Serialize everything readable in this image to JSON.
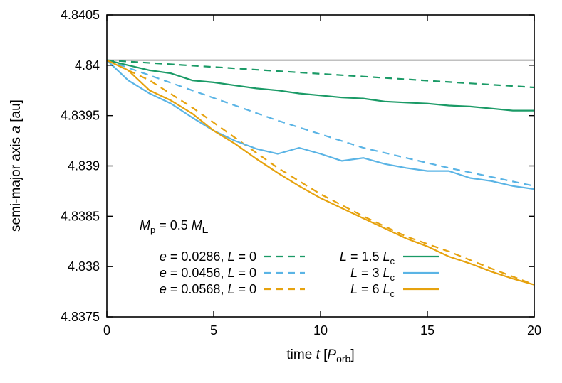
{
  "chart_data": {
    "type": "line",
    "xlabel_parts": [
      "time ",
      "t",
      " [",
      "P",
      "orb",
      "]"
    ],
    "ylabel_parts": [
      "semi-major axis ",
      "a",
      " [au]"
    ],
    "xlim": [
      0,
      20
    ],
    "ylim": [
      4.8375,
      4.8405
    ],
    "xticks": [
      "0",
      "5",
      "10",
      "15",
      "20"
    ],
    "yticks": [
      "4.8375",
      "4.838",
      "4.8385",
      "4.839",
      "4.8395",
      "4.84",
      "4.8405"
    ],
    "grid": false,
    "legend_placement": "bottom-left",
    "annotation_parts": [
      "M",
      "p",
      " = 0.5 ",
      "M",
      "E"
    ],
    "colors": {
      "green": "#1a9a66",
      "blue": "#5ab4e5",
      "orange": "#e6a20e",
      "reference": "#c0c0c0"
    },
    "reference_line": {
      "y": 4.84005,
      "color": "#c0c0c0"
    },
    "legend": [
      {
        "parts": [
          "e",
          " = 0.0286, ",
          "L",
          " = 0"
        ],
        "style": "dashed",
        "color": "#1a9a66"
      },
      {
        "parts": [
          "e",
          " = 0.0456, ",
          "L",
          " = 0"
        ],
        "style": "dashed",
        "color": "#5ab4e5"
      },
      {
        "parts": [
          "e",
          " = 0.0568, ",
          "L",
          " = 0"
        ],
        "style": "dashed",
        "color": "#e6a20e"
      },
      {
        "parts": [
          "L",
          " = 1.5 ",
          "L",
          "c"
        ],
        "style": "solid",
        "color": "#1a9a66"
      },
      {
        "parts": [
          "L",
          " = 3 ",
          "L",
          "c"
        ],
        "style": "solid",
        "color": "#5ab4e5"
      },
      {
        "parts": [
          "L",
          " = 6 ",
          "L",
          "c"
        ],
        "style": "solid",
        "color": "#e6a20e"
      }
    ],
    "series": [
      {
        "style": "dashed",
        "color": "#1a9a66",
        "x": [
          0,
          20
        ],
        "y": [
          4.84005,
          4.83978
        ]
      },
      {
        "style": "dashed",
        "color": "#5ab4e5",
        "x": [
          0,
          4,
          8,
          12,
          16,
          20
        ],
        "y": [
          4.84005,
          4.83975,
          4.83945,
          4.83918,
          4.83898,
          4.8388
        ]
      },
      {
        "style": "dashed",
        "color": "#e6a20e",
        "x": [
          0,
          2,
          4,
          6,
          8,
          10,
          12,
          14,
          16,
          18,
          20
        ],
        "y": [
          4.84005,
          4.83985,
          4.83958,
          4.83928,
          4.83898,
          4.83872,
          4.8385,
          4.8383,
          4.83815,
          4.83798,
          4.83782
        ]
      },
      {
        "style": "solid",
        "color": "#1a9a66",
        "x": [
          0,
          1,
          2,
          3,
          4,
          5,
          6,
          7,
          8,
          9,
          10,
          11,
          12,
          13,
          14,
          15,
          16,
          17,
          18,
          19,
          20
        ],
        "y": [
          4.84005,
          4.84,
          4.83995,
          4.83992,
          4.83985,
          4.83983,
          4.8398,
          4.83977,
          4.83975,
          4.83972,
          4.8397,
          4.83968,
          4.83967,
          4.83964,
          4.83963,
          4.83962,
          4.8396,
          4.83959,
          4.83957,
          4.83955,
          4.83955
        ]
      },
      {
        "style": "solid",
        "color": "#5ab4e5",
        "x": [
          0,
          1,
          2,
          3,
          4,
          5,
          6,
          7,
          8,
          9,
          10,
          11,
          12,
          13,
          14,
          15,
          16,
          17,
          18,
          19,
          20
        ],
        "y": [
          4.84005,
          4.83985,
          4.83972,
          4.83962,
          4.83948,
          4.83935,
          4.83925,
          4.83917,
          4.83912,
          4.83918,
          4.83912,
          4.83905,
          4.83908,
          4.83902,
          4.83898,
          4.83895,
          4.83895,
          4.83888,
          4.83885,
          4.8388,
          4.83877
        ]
      },
      {
        "style": "solid",
        "color": "#e6a20e",
        "x": [
          0,
          1,
          2,
          3,
          4,
          5,
          6,
          7,
          8,
          9,
          10,
          11,
          12,
          13,
          14,
          15,
          16,
          17,
          18,
          19,
          20
        ],
        "y": [
          4.84005,
          4.83995,
          4.83975,
          4.83965,
          4.83952,
          4.83935,
          4.83922,
          4.83907,
          4.83893,
          4.8388,
          4.83868,
          4.83858,
          4.83848,
          4.83838,
          4.83828,
          4.8382,
          4.8381,
          4.83803,
          4.83795,
          4.83788,
          4.83782
        ]
      }
    ]
  }
}
